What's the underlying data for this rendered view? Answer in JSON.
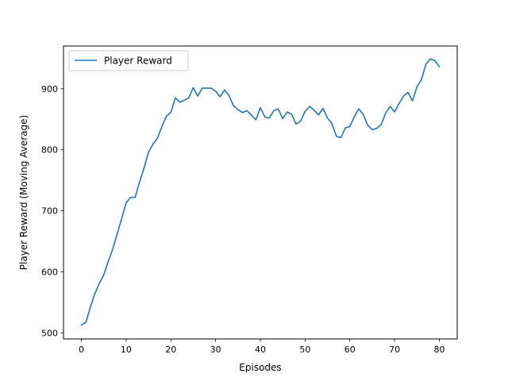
{
  "chart_data": {
    "type": "line",
    "title": "",
    "xlabel": "Episodes",
    "ylabel": "Player Reward (Moving Average)",
    "xlim": [
      -4,
      84
    ],
    "ylim": [
      490,
      970
    ],
    "xticks": [
      0,
      10,
      20,
      30,
      40,
      50,
      60,
      70,
      80
    ],
    "yticks": [
      500,
      600,
      700,
      800,
      900
    ],
    "xtick_labels": [
      "0",
      "10",
      "20",
      "30",
      "40",
      "50",
      "60",
      "70",
      "80"
    ],
    "ytick_labels": [
      "500",
      "600",
      "700",
      "800",
      "900"
    ],
    "grid": false,
    "legend_position": "upper left",
    "series": [
      {
        "name": "Player Reward",
        "color": "#1f77b4",
        "x": [
          0,
          1,
          2,
          3,
          4,
          5,
          6,
          7,
          8,
          9,
          10,
          11,
          12,
          13,
          14,
          15,
          16,
          17,
          18,
          19,
          20,
          21,
          22,
          23,
          24,
          25,
          26,
          27,
          28,
          29,
          30,
          31,
          32,
          33,
          34,
          35,
          36,
          37,
          38,
          39,
          40,
          41,
          42,
          43,
          44,
          45,
          46,
          47,
          48,
          49,
          50,
          51,
          52,
          53,
          54,
          55,
          56,
          57,
          58,
          59,
          60,
          61,
          62,
          63,
          64,
          65,
          66,
          67,
          68,
          69,
          70,
          71,
          72,
          73,
          74,
          75,
          76,
          77,
          78,
          79,
          80
        ],
        "values": [
          513,
          517,
          542,
          564,
          581,
          595,
          617,
          637,
          662,
          687,
          713,
          722,
          722,
          747,
          770,
          796,
          809,
          819,
          838,
          855,
          861,
          885,
          878,
          881,
          885,
          902,
          888,
          901,
          901,
          901,
          896,
          887,
          898,
          889,
          872,
          866,
          861,
          864,
          857,
          849,
          869,
          854,
          852,
          864,
          867,
          851,
          862,
          858,
          842,
          847,
          863,
          871,
          865,
          857,
          868,
          852,
          843,
          822,
          820,
          836,
          838,
          854,
          867,
          858,
          840,
          833,
          835,
          841,
          860,
          871,
          862,
          876,
          888,
          894,
          880,
          903,
          915,
          940,
          949,
          946,
          936
        ]
      }
    ]
  }
}
